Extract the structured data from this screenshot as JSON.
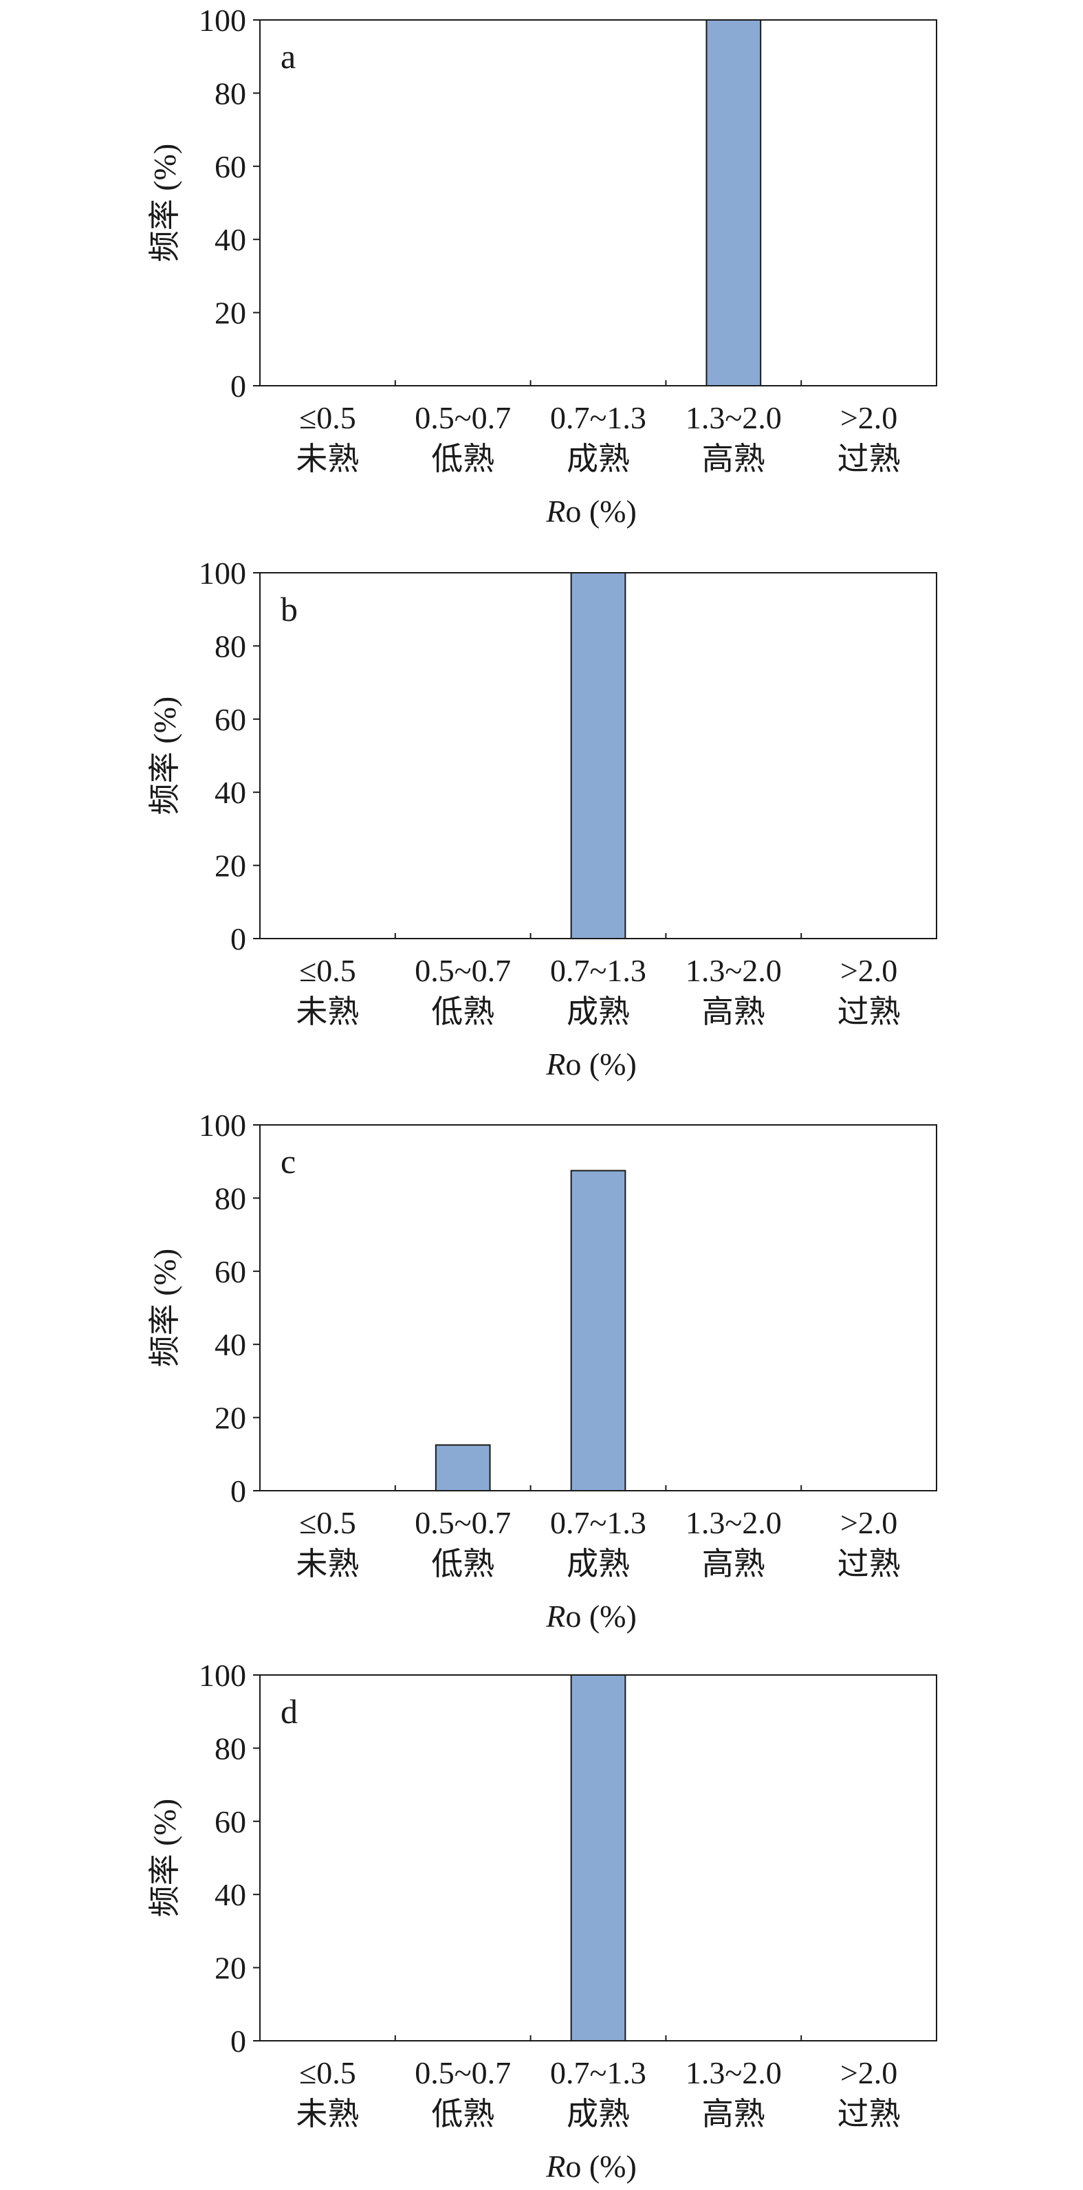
{
  "chart_data": [
    {
      "type": "bar",
      "panel_label": "a",
      "categories": [
        "≤0.5\n未熟",
        "0.5~0.7\n低熟",
        "0.7~1.3\n成熟",
        "1.3~2.0\n高熟",
        ">2.0\n过熟"
      ],
      "values": [
        0,
        0,
        0,
        100,
        0
      ],
      "xlabel": "Ro (%)",
      "ylabel": "频率 (%)",
      "ylim": [
        0,
        100
      ],
      "yticks": [
        0,
        20,
        40,
        60,
        80,
        100
      ],
      "bar_color": "#8aaad4",
      "grid": false
    },
    {
      "type": "bar",
      "panel_label": "b",
      "categories": [
        "≤0.5\n未熟",
        "0.5~0.7\n低熟",
        "0.7~1.3\n成熟",
        "1.3~2.0\n高熟",
        ">2.0\n过熟"
      ],
      "values": [
        0,
        0,
        100,
        0,
        0
      ],
      "xlabel": "Ro (%)",
      "ylabel": "频率 (%)",
      "ylim": [
        0,
        100
      ],
      "yticks": [
        0,
        20,
        40,
        60,
        80,
        100
      ],
      "bar_color": "#8aaad4",
      "grid": false
    },
    {
      "type": "bar",
      "panel_label": "c",
      "categories": [
        "≤0.5\n未熟",
        "0.5~0.7\n低熟",
        "0.7~1.3\n成熟",
        "1.3~2.0\n高熟",
        ">2.0\n过熟"
      ],
      "values": [
        0,
        12.5,
        87.5,
        0,
        0
      ],
      "xlabel": "Ro (%)",
      "ylabel": "频率 (%)",
      "ylim": [
        0,
        100
      ],
      "yticks": [
        0,
        20,
        40,
        60,
        80,
        100
      ],
      "bar_color": "#8aaad4",
      "grid": false
    },
    {
      "type": "bar",
      "panel_label": "d",
      "categories": [
        "≤0.5\n未熟",
        "0.5~0.7\n低熟",
        "0.7~1.3\n成熟",
        "1.3~2.0\n高熟",
        ">2.0\n过熟"
      ],
      "values": [
        0,
        0,
        100,
        0,
        0
      ],
      "xlabel": "Ro (%)",
      "ylabel": "频率 (%)",
      "ylim": [
        0,
        100
      ],
      "yticks": [
        0,
        20,
        40,
        60,
        80,
        100
      ],
      "bar_color": "#8aaad4",
      "grid": false
    }
  ]
}
